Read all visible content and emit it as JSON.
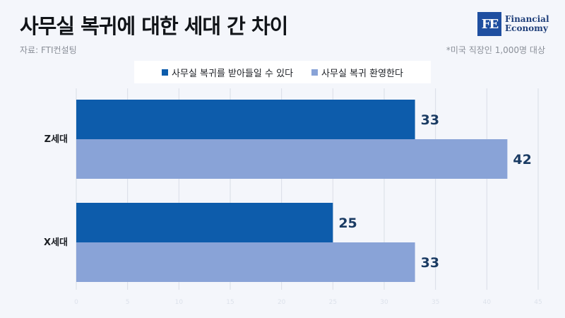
{
  "header": {
    "title": "사무실 복귀에 대한 세대 간 차이",
    "source": "자료: FTI컨설팅",
    "note": "*미국 직장인 1,000명 대상"
  },
  "logo": {
    "mark": "FE",
    "line1": "Financial",
    "line2": "Economy"
  },
  "colors": {
    "series1": "#0d5cab",
    "series2": "#89a3d7",
    "value_text": "#1a3b63",
    "grid": "#d9dde6"
  },
  "chart_data": {
    "type": "bar",
    "orientation": "horizontal",
    "categories": [
      "Z세대",
      "X세대"
    ],
    "series": [
      {
        "name": "사무실 복귀를 받아들일 수 있다",
        "values": [
          33,
          25
        ]
      },
      {
        "name": "사무실 복귀 환영한다",
        "values": [
          42,
          33
        ]
      }
    ],
    "xlim": [
      0,
      45
    ],
    "xticks": [
      0,
      5,
      10,
      15,
      20,
      25,
      30,
      35,
      40,
      45
    ],
    "grid": true,
    "legend_position": "top"
  }
}
